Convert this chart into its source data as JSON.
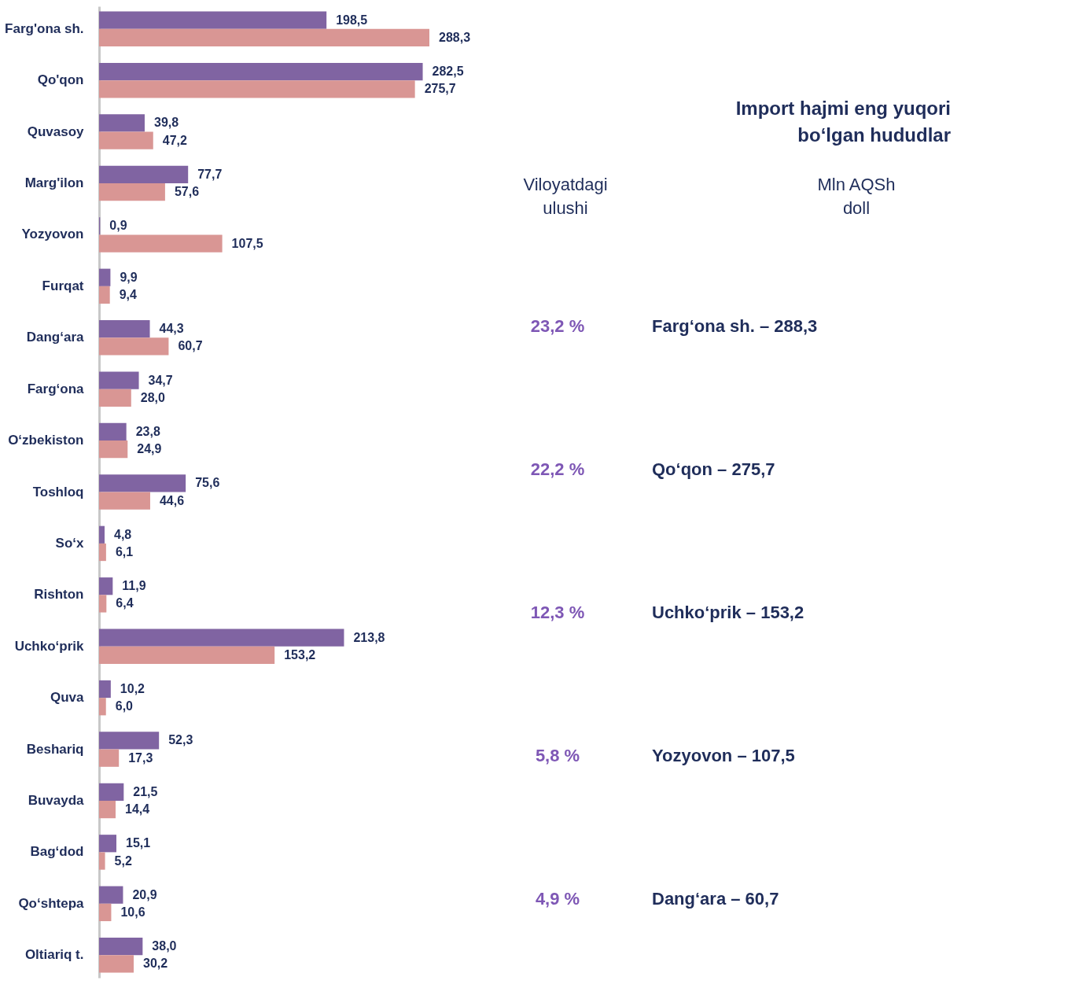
{
  "chart_data": [
    {
      "type": "bar",
      "orientation": "horizontal",
      "tick_labels": "y",
      "legend": false,
      "categories": [
        "Farg'ona sh.",
        "Qo'qon",
        "Quvasoy",
        "Marg'ilon",
        "Yozyovon",
        "Furqat",
        "Dang‘ara",
        "Farg‘ona",
        "O‘zbekiston",
        "Toshloq",
        "So‘x",
        "Rishton",
        "Uchko‘prik",
        "Quva",
        "Beshariq",
        "Buvayda",
        "Bag‘dod",
        "Qo‘shtepa",
        "Oltiariq t."
      ],
      "series": [
        {
          "color": "#8064a2",
          "values": [
            198.5,
            282.5,
            39.8,
            77.7,
            0.9,
            9.9,
            44.3,
            34.7,
            23.8,
            75.6,
            4.8,
            11.9,
            213.8,
            10.2,
            52.3,
            21.5,
            15.1,
            20.9,
            38.0
          ],
          "value_labels": [
            "198,5",
            "282,5",
            "39,8",
            "77,7",
            "0,9",
            "9,9",
            "44,3",
            "34,7",
            "23,8",
            "75,6",
            "4,8",
            "11,9",
            "213,8",
            "10,2",
            "52,3",
            "21,5",
            "15,1",
            "20,9",
            "38,0"
          ]
        },
        {
          "color": "#d99694",
          "values": [
            288.3,
            275.7,
            47.2,
            57.6,
            107.5,
            9.4,
            60.7,
            28.0,
            24.9,
            44.6,
            6.1,
            6.4,
            153.2,
            6.0,
            17.3,
            14.4,
            5.2,
            10.6,
            30.2
          ],
          "value_labels": [
            "288,3",
            "275,7",
            "47,2",
            "57,6",
            "107,5",
            "9,4",
            "60,7",
            "28,0",
            "24,9",
            "44,6",
            "6,1",
            "6,4",
            "153,2",
            "6,0",
            "17,3",
            "14,4",
            "5,2",
            "10,6",
            "30,2"
          ]
        }
      ]
    },
    {
      "type": "other",
      "title": "Import hajmi eng yuqori\nbo‘lgan hududlar",
      "annotations": [
        "Viloyatdagi\nulushi",
        "Mln AQSh\ndoll",
        "23,2 %",
        "Farg‘ona sh. – 288,3",
        "22,2 %",
        "Qo‘qon – 275,7",
        "12,3 %",
        "Uchko‘prik – 153,2",
        "5,8 %",
        "Yozyovon – 107,5",
        "4,9 %",
        "Dang‘ara – 60,7"
      ]
    }
  ]
}
